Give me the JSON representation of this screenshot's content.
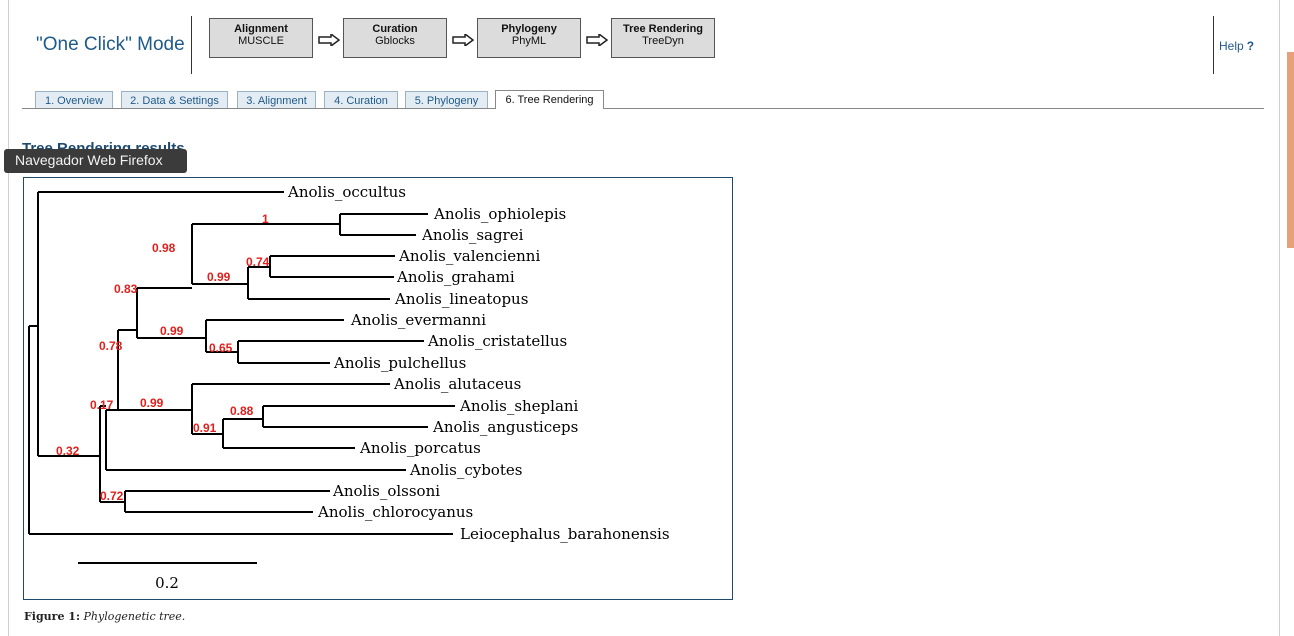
{
  "header": {
    "mode_title": "\"One Click\" Mode",
    "steps": [
      {
        "title": "Alignment",
        "subtitle": "MUSCLE"
      },
      {
        "title": "Curation",
        "subtitle": "Gblocks"
      },
      {
        "title": "Phylogeny",
        "subtitle": "PhyML"
      },
      {
        "title": "Tree Rendering",
        "subtitle": "TreeDyn"
      }
    ],
    "help_label": "Help",
    "help_icon": "?"
  },
  "tabs": [
    {
      "label": "1. Overview"
    },
    {
      "label": "2. Data & Settings"
    },
    {
      "label": "3. Alignment"
    },
    {
      "label": "4. Curation"
    },
    {
      "label": "5. Phylogeny"
    },
    {
      "label": "6. Tree Rendering",
      "active": true
    }
  ],
  "results": {
    "title": "Tree Rendering results",
    "tooltip": "Navegador Web Firefox"
  },
  "tree": {
    "taxa": [
      "Anolis_occultus",
      "Anolis_ophiolepis",
      "Anolis_sagrei",
      "Anolis_valencienni",
      "Anolis_grahami",
      "Anolis_lineatopus",
      "Anolis_evermanni",
      "Anolis_cristatellus",
      "Anolis_pulchellus",
      "Anolis_alutaceus",
      "Anolis_sheplani",
      "Anolis_angusticeps",
      "Anolis_porcatus",
      "Anolis_cybotes",
      "Anolis_olssoni",
      "Anolis_chlorocyanus",
      "Leiocephalus_barahonensis"
    ],
    "support_values": [
      "1",
      "0.98",
      "0.74",
      "0.99",
      "0.83",
      "0.99",
      "0.65",
      "0.78",
      "0.99",
      "0.88",
      "0.91",
      "0.17",
      "0.32",
      "0.72"
    ],
    "support_color": "#e0201c",
    "scale_label": "0.2"
  },
  "caption": {
    "label": "Figure 1:",
    "text": "Phylogenetic tree."
  }
}
